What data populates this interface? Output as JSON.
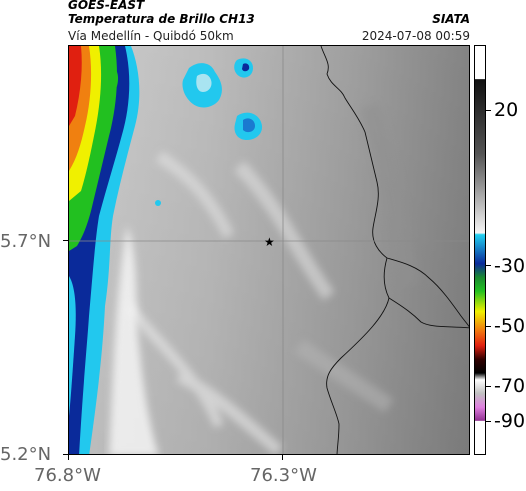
{
  "header": {
    "line1_left": "GOES-EAST",
    "line2_left": "Temperatura de Brillo CH13",
    "line2_right": "SIATA",
    "line3_left": "Vía Medellín - Quibdó 50km",
    "line3_right": "2024-07-08 00:59"
  },
  "map": {
    "lat_labels": [
      "5.7°N",
      "5.2°N"
    ],
    "lon_labels": [
      "76.8°W",
      "76.3°W"
    ],
    "marker": "star-marker",
    "crosshair": true
  },
  "colorbar": {
    "tick_labels": [
      "20",
      "-30",
      "-50",
      "-70",
      "-90"
    ],
    "colors": {
      "gray_top": "#1a1a1a",
      "gray_bottom": "#f2f2f2",
      "cyan": "#22d0f0",
      "blue": "#0a2a9a",
      "green": "#22c020",
      "yellow": "#f0f000",
      "red": "#e02010",
      "black": "#000000",
      "magenta": "#b040b0"
    }
  }
}
